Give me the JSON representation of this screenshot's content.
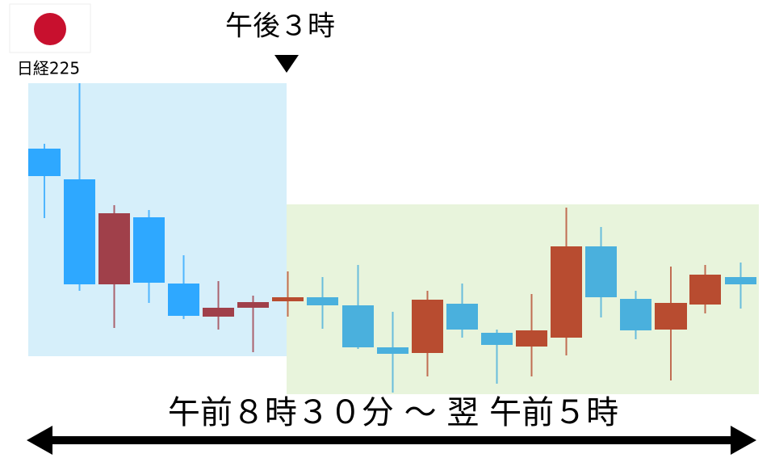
{
  "index_label": "日経225",
  "session_break_label": "午後３時",
  "session_span_label": "午前８時３０分 ～ 翌 午前５時"
}
